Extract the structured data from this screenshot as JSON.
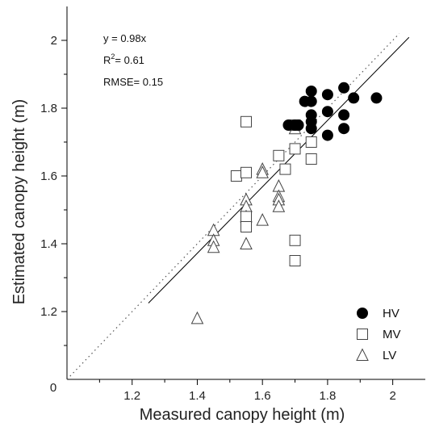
{
  "chart_data": {
    "type": "scatter",
    "xlabel": "Measured canopy height (m)",
    "ylabel": "Estimated canopy height (m)",
    "xlim": [
      1.0,
      2.1
    ],
    "ylim": [
      1.0,
      2.1
    ],
    "origin_label": "0",
    "x_ticks": [
      1.2,
      1.4,
      1.6,
      1.8,
      2.0
    ],
    "x_tick_labels": [
      "1.2",
      "1.4",
      "1.6",
      "1.8",
      "2"
    ],
    "y_ticks": [
      1.2,
      1.4,
      1.6,
      1.8,
      2.0
    ],
    "y_tick_labels": [
      "1.2",
      "1.4",
      "1.6",
      "1.8",
      "2"
    ],
    "annotations": {
      "equation": "y = 0.98x",
      "r2_prefix": "R",
      "r2_sup": "2",
      "r2_value": "= 0.61",
      "rmse": "RMSE= 0.15"
    },
    "fit_line": {
      "slope": 0.98,
      "x_range": [
        1.25,
        2.05
      ],
      "style": "solid",
      "color": "#000000"
    },
    "reference_line": {
      "slope": 1.0,
      "x_range": [
        1.0,
        2.1
      ],
      "style": "dotted",
      "color": "#555555"
    },
    "legend": {
      "position": "bottom-right"
    },
    "series": [
      {
        "name": "HV",
        "marker": "filled-circle",
        "points": [
          [
            1.68,
            1.75
          ],
          [
            1.7,
            1.75
          ],
          [
            1.71,
            1.75
          ],
          [
            1.73,
            1.82
          ],
          [
            1.75,
            1.85
          ],
          [
            1.75,
            1.82
          ],
          [
            1.75,
            1.78
          ],
          [
            1.75,
            1.76
          ],
          [
            1.75,
            1.74
          ],
          [
            1.8,
            1.84
          ],
          [
            1.8,
            1.79
          ],
          [
            1.8,
            1.72
          ],
          [
            1.85,
            1.86
          ],
          [
            1.85,
            1.78
          ],
          [
            1.85,
            1.74
          ],
          [
            1.88,
            1.83
          ],
          [
            1.95,
            1.83
          ]
        ]
      },
      {
        "name": "MV",
        "marker": "open-square",
        "points": [
          [
            1.55,
            1.76
          ],
          [
            1.52,
            1.6
          ],
          [
            1.55,
            1.61
          ],
          [
            1.55,
            1.48
          ],
          [
            1.55,
            1.45
          ],
          [
            1.65,
            1.66
          ],
          [
            1.67,
            1.62
          ],
          [
            1.7,
            1.68
          ],
          [
            1.7,
            1.75
          ],
          [
            1.7,
            1.41
          ],
          [
            1.7,
            1.35
          ],
          [
            1.75,
            1.7
          ],
          [
            1.75,
            1.65
          ]
        ]
      },
      {
        "name": "LV",
        "marker": "open-triangle",
        "points": [
          [
            1.4,
            1.18
          ],
          [
            1.45,
            1.44
          ],
          [
            1.45,
            1.41
          ],
          [
            1.45,
            1.39
          ],
          [
            1.55,
            1.53
          ],
          [
            1.55,
            1.51
          ],
          [
            1.55,
            1.48
          ],
          [
            1.55,
            1.4
          ],
          [
            1.6,
            1.62
          ],
          [
            1.6,
            1.61
          ],
          [
            1.6,
            1.47
          ],
          [
            1.65,
            1.57
          ],
          [
            1.65,
            1.54
          ],
          [
            1.65,
            1.53
          ],
          [
            1.65,
            1.51
          ],
          [
            1.7,
            1.74
          ]
        ]
      }
    ]
  }
}
